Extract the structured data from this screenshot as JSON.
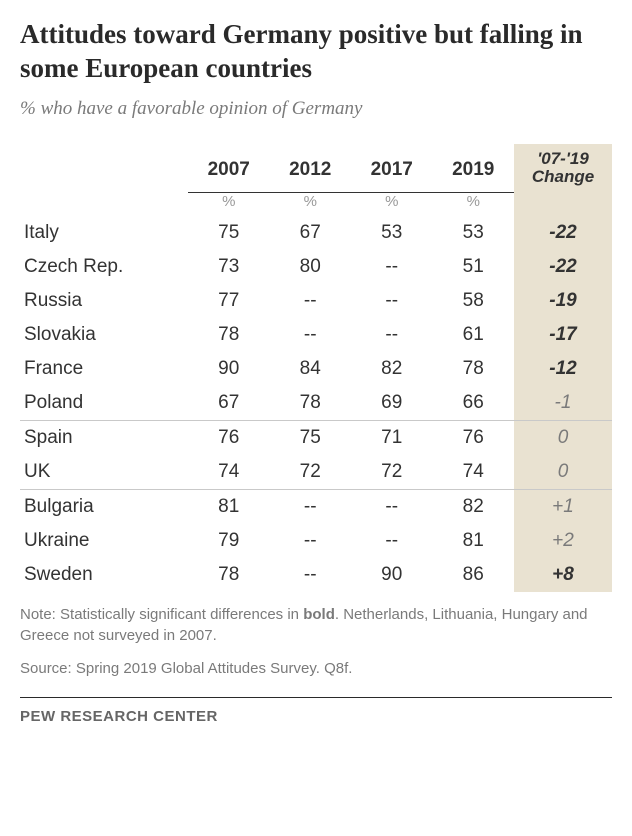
{
  "title": "Attitudes toward Germany positive but falling in some European countries",
  "subtitle": "% who have a favorable opinion of Germany",
  "columns": {
    "c2007": "2007",
    "c2012": "2012",
    "c2017": "2017",
    "c2019": "2019",
    "change_line1": "'07-'19",
    "change_line2": "Change"
  },
  "pct_label": "%",
  "rows": [
    {
      "country": "Italy",
      "v2007": "75",
      "v2012": "67",
      "v2017": "53",
      "v2019": "53",
      "change": "-22",
      "sig": true,
      "sep": false
    },
    {
      "country": "Czech Rep.",
      "v2007": "73",
      "v2012": "80",
      "v2017": "--",
      "v2019": "51",
      "change": "-22",
      "sig": true,
      "sep": false
    },
    {
      "country": "Russia",
      "v2007": "77",
      "v2012": "--",
      "v2017": "--",
      "v2019": "58",
      "change": "-19",
      "sig": true,
      "sep": false
    },
    {
      "country": "Slovakia",
      "v2007": "78",
      "v2012": "--",
      "v2017": "--",
      "v2019": "61",
      "change": "-17",
      "sig": true,
      "sep": false
    },
    {
      "country": "France",
      "v2007": "90",
      "v2012": "84",
      "v2017": "82",
      "v2019": "78",
      "change": "-12",
      "sig": true,
      "sep": false
    },
    {
      "country": "Poland",
      "v2007": "67",
      "v2012": "78",
      "v2017": "69",
      "v2019": "66",
      "change": "-1",
      "sig": false,
      "sep": false
    },
    {
      "country": "Spain",
      "v2007": "76",
      "v2012": "75",
      "v2017": "71",
      "v2019": "76",
      "change": "0",
      "sig": false,
      "sep": true
    },
    {
      "country": "UK",
      "v2007": "74",
      "v2012": "72",
      "v2017": "72",
      "v2019": "74",
      "change": "0",
      "sig": false,
      "sep": false
    },
    {
      "country": "Bulgaria",
      "v2007": "81",
      "v2012": "--",
      "v2017": "--",
      "v2019": "82",
      "change": "+1",
      "sig": false,
      "sep": true
    },
    {
      "country": "Ukraine",
      "v2007": "79",
      "v2012": "--",
      "v2017": "--",
      "v2019": "81",
      "change": "+2",
      "sig": false,
      "sep": false
    },
    {
      "country": "Sweden",
      "v2007": "78",
      "v2012": "--",
      "v2017": "90",
      "v2019": "86",
      "change": "+8",
      "sig": true,
      "sep": false
    }
  ],
  "note_prefix": "Note: Statistically significant differences in ",
  "note_bold": "bold",
  "note_suffix": ". Netherlands, Lithuania, Hungary and Greece not surveyed in 2007.",
  "source": "Source: Spring 2019 Global Attitudes Survey. Q8f.",
  "brand": "PEW RESEARCH CENTER",
  "colors": {
    "bg": "#ffffff",
    "text": "#333333",
    "muted": "#7a7a7a",
    "highlight_bg": "#e9e2d1",
    "rule": "#c9c9c9"
  },
  "chart_type": "table"
}
